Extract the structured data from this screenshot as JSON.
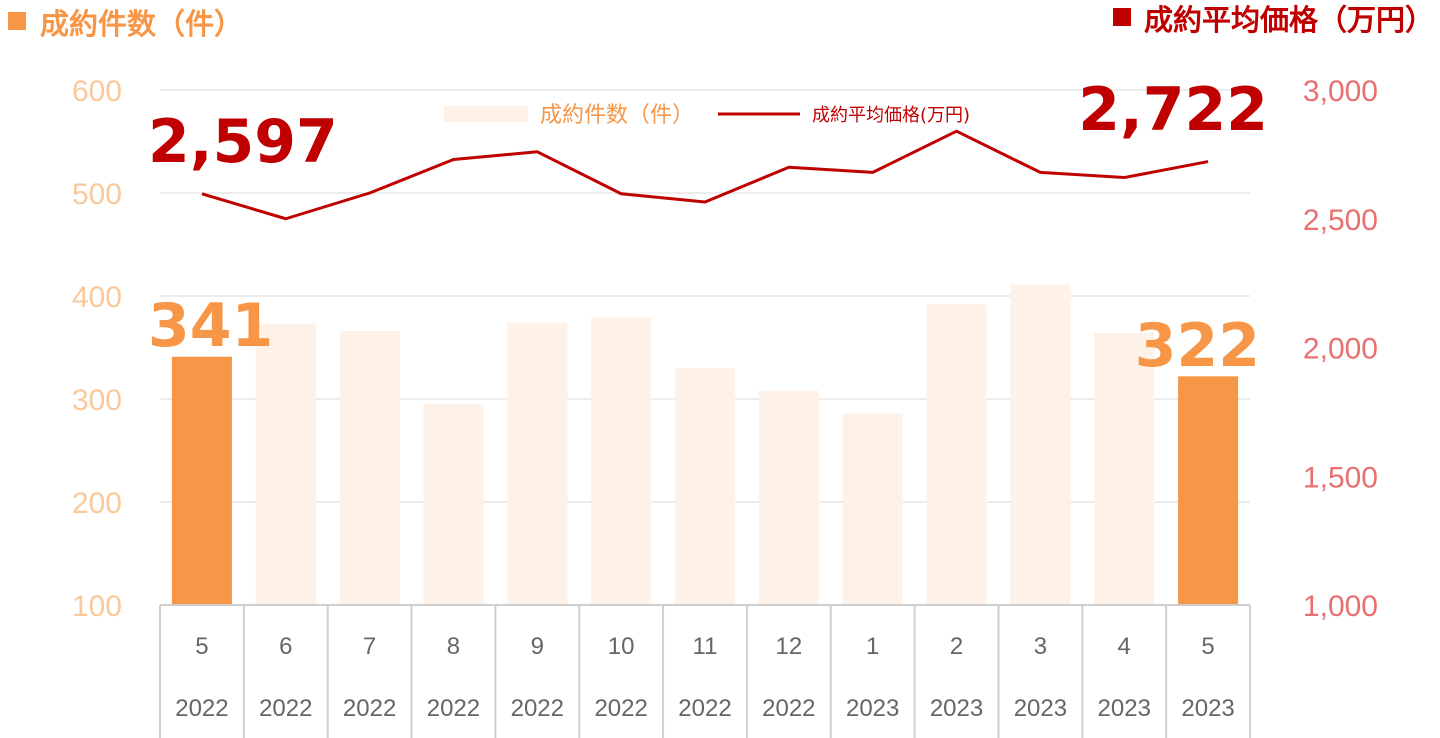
{
  "header": {
    "left_title": "成約件数（件）",
    "right_title": "成約平均価格（万円）"
  },
  "legend": {
    "bars_label": "成約件数（件）",
    "line_label": "成約平均価格(万円)"
  },
  "colors": {
    "bar_highlight": "#f79646",
    "bar_light": "#fdf1e8",
    "line": "#c00000",
    "left_axis_text": "#f9c99a",
    "right_axis_text": "#e87070",
    "left_header": "#f79646",
    "right_header": "#c00000"
  },
  "chart_data": {
    "type": "bar",
    "categories": [
      "5",
      "6",
      "7",
      "8",
      "9",
      "10",
      "11",
      "12",
      "1",
      "2",
      "3",
      "4",
      "5"
    ],
    "years": [
      "2022",
      "2022",
      "2022",
      "2022",
      "2022",
      "2022",
      "2022",
      "2022",
      "2023",
      "2023",
      "2023",
      "2023",
      "2023"
    ],
    "series": [
      {
        "name": "成約件数（件）",
        "type": "bar",
        "axis": "left",
        "values": [
          341,
          373,
          366,
          295,
          374,
          379,
          330,
          308,
          286,
          392,
          411,
          364,
          322
        ],
        "highlight": [
          true,
          false,
          false,
          false,
          false,
          false,
          false,
          false,
          false,
          false,
          false,
          false,
          true
        ]
      },
      {
        "name": "成約平均価格(万円)",
        "type": "line",
        "axis": "right",
        "values": [
          2597,
          2500,
          2600,
          2730,
          2760,
          2597,
          2565,
          2700,
          2680,
          2840,
          2680,
          2660,
          2722
        ]
      }
    ],
    "y_left": {
      "min": 100,
      "max": 600,
      "ticks": [
        "100",
        "200",
        "300",
        "400",
        "500",
        "600"
      ]
    },
    "y_right": {
      "min": 1000,
      "max": 3000,
      "ticks": [
        "1,000",
        "1,500",
        "2,000",
        "2,500",
        "3,000"
      ]
    },
    "callouts": {
      "bar_first": "341",
      "bar_last": "322",
      "line_first": "2,597",
      "line_last": "2,722"
    },
    "grid": true,
    "legend_position": "top-center"
  }
}
